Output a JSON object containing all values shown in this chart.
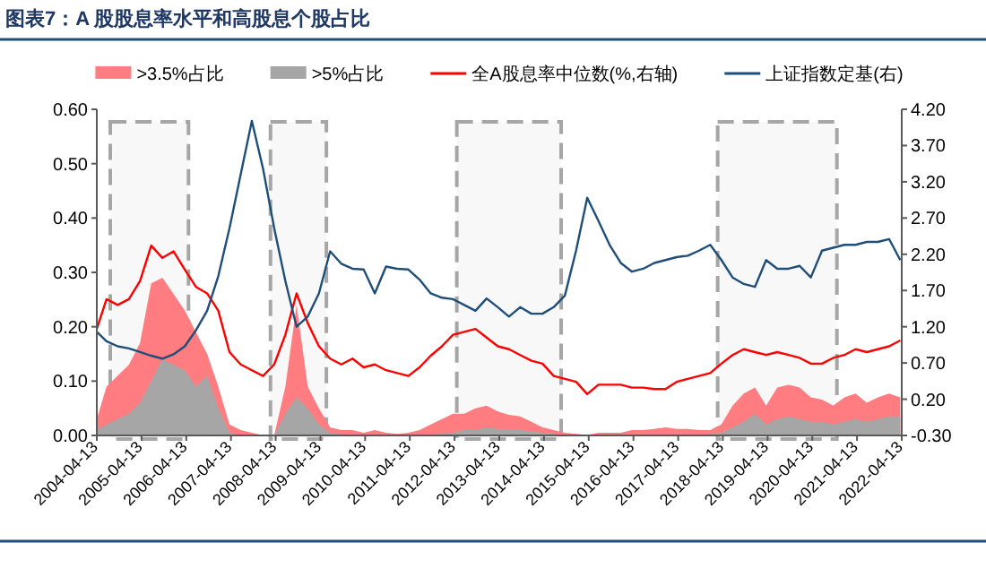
{
  "chart_data": {
    "type": "line",
    "title": "图表7：A 股股息率水平和高股息个股占比",
    "x": [
      "2004-04-13",
      "2004-07",
      "2004-10",
      "2005-01",
      "2005-04",
      "2005-07",
      "2005-10",
      "2006-01",
      "2006-04",
      "2006-07",
      "2006-10",
      "2007-01",
      "2007-04",
      "2007-07",
      "2007-10",
      "2008-01",
      "2008-04",
      "2008-07",
      "2008-10",
      "2009-01",
      "2009-04",
      "2009-07",
      "2009-10",
      "2010-01",
      "2010-04",
      "2010-07",
      "2010-10",
      "2011-01",
      "2011-04",
      "2011-07",
      "2011-10",
      "2012-01",
      "2012-04",
      "2012-07",
      "2012-10",
      "2013-01",
      "2013-04",
      "2013-07",
      "2013-10",
      "2014-01",
      "2014-04",
      "2014-07",
      "2014-10",
      "2015-01",
      "2015-04",
      "2015-07",
      "2015-10",
      "2016-01",
      "2016-04",
      "2016-07",
      "2016-10",
      "2017-01",
      "2017-04",
      "2017-07",
      "2017-10",
      "2018-01",
      "2018-04",
      "2018-07",
      "2018-10",
      "2019-01",
      "2019-04",
      "2019-07",
      "2019-10",
      "2020-01",
      "2020-04",
      "2020-07",
      "2020-10",
      "2021-01",
      "2021-04",
      "2021-07",
      "2021-10",
      "2022-01",
      "2022-04"
    ],
    "series": [
      {
        "name": ">3.5%占比",
        "type": "area",
        "color": "#ff7c80",
        "values": [
          0.03,
          0.09,
          0.11,
          0.13,
          0.17,
          0.28,
          0.29,
          0.26,
          0.23,
          0.19,
          0.15,
          0.09,
          0.02,
          0.01,
          0.005,
          0,
          0,
          0.09,
          0.24,
          0.09,
          0.05,
          0.015,
          0.01,
          0.01,
          0.005,
          0.01,
          0.005,
          0.003,
          0.005,
          0.01,
          0.02,
          0.03,
          0.04,
          0.04,
          0.05,
          0.055,
          0.044,
          0.038,
          0.035,
          0.025,
          0.015,
          0.01,
          0.005,
          0.003,
          0.001,
          0.005,
          0.005,
          0.005,
          0.01,
          0.01,
          0.012,
          0.015,
          0.012,
          0.012,
          0.01,
          0.01,
          0.02,
          0.055,
          0.077,
          0.088,
          0.055,
          0.088,
          0.093,
          0.088,
          0.07,
          0.066,
          0.055,
          0.07,
          0.077,
          0.06,
          0.07,
          0.077,
          0.07
        ]
      },
      {
        "name": ">5%占比",
        "type": "area",
        "color": "#a6a6a6",
        "values": [
          0.01,
          0.02,
          0.03,
          0.04,
          0.06,
          0.1,
          0.14,
          0.13,
          0.12,
          0.09,
          0.11,
          0.05,
          0.005,
          0,
          0,
          0,
          0,
          0.04,
          0.07,
          0.05,
          0.02,
          0.005,
          0.002,
          0.002,
          0.002,
          0.002,
          0.002,
          0.002,
          0.002,
          0.002,
          0.002,
          0.003,
          0.005,
          0.01,
          0.01,
          0.015,
          0.012,
          0.01,
          0.01,
          0.008,
          0.005,
          0.003,
          0,
          0,
          0,
          0.002,
          0.002,
          0.002,
          0.002,
          0.002,
          0.002,
          0.002,
          0.002,
          0.002,
          0.002,
          0.002,
          0.005,
          0.015,
          0.025,
          0.04,
          0.02,
          0.03,
          0.035,
          0.03,
          0.025,
          0.025,
          0.02,
          0.025,
          0.03,
          0.025,
          0.03,
          0.035,
          0.035
        ]
      },
      {
        "name": "全A股息率中位数(%,右轴)",
        "type": "line",
        "axis": "y2",
        "color": "#ff0000",
        "values": [
          1.17,
          1.58,
          1.5,
          1.58,
          1.83,
          2.32,
          2.15,
          2.24,
          1.99,
          1.75,
          1.66,
          1.42,
          0.85,
          0.68,
          0.6,
          0.52,
          0.68,
          1.09,
          1.66,
          1.25,
          0.93,
          0.76,
          0.68,
          0.76,
          0.64,
          0.68,
          0.6,
          0.56,
          0.52,
          0.64,
          0.8,
          0.93,
          1.09,
          1.13,
          1.17,
          1.05,
          0.93,
          0.89,
          0.81,
          0.73,
          0.69,
          0.52,
          0.48,
          0.44,
          0.27,
          0.4,
          0.4,
          0.4,
          0.36,
          0.36,
          0.34,
          0.34,
          0.44,
          0.48,
          0.52,
          0.56,
          0.69,
          0.81,
          0.89,
          0.85,
          0.81,
          0.85,
          0.81,
          0.77,
          0.69,
          0.69,
          0.77,
          0.81,
          0.89,
          0.85,
          0.89,
          0.93,
          1.01
        ]
      },
      {
        "name": "上证指数定基(右)",
        "type": "line",
        "axis": "y2",
        "color": "#1f4e79",
        "values": [
          1.13,
          1.0,
          0.93,
          0.9,
          0.85,
          0.8,
          0.76,
          0.82,
          0.93,
          1.15,
          1.42,
          1.9,
          2.56,
          3.3,
          4.04,
          3.38,
          2.56,
          1.83,
          1.2,
          1.34,
          1.66,
          2.24,
          2.07,
          2.0,
          1.99,
          1.66,
          2.03,
          2.0,
          1.99,
          1.85,
          1.66,
          1.6,
          1.58,
          1.5,
          1.42,
          1.59,
          1.47,
          1.34,
          1.47,
          1.38,
          1.38,
          1.47,
          1.63,
          2.25,
          2.98,
          2.66,
          2.33,
          2.08,
          1.96,
          2.0,
          2.08,
          2.12,
          2.16,
          2.18,
          2.25,
          2.33,
          2.12,
          1.88,
          1.79,
          1.75,
          2.12,
          2.0,
          2.0,
          2.04,
          1.88,
          2.25,
          2.29,
          2.33,
          2.33,
          2.37,
          2.37,
          2.41,
          2.12
        ]
      }
    ],
    "xlim": [
      "2004-04-13",
      "2022-04-13"
    ],
    "xticks": [
      "2004-04-13",
      "2005-04-13",
      "2006-04-13",
      "2007-04-13",
      "2008-04-13",
      "2009-04-13",
      "2010-04-13",
      "2011-04-13",
      "2012-04-13",
      "2013-04-13",
      "2014-04-13",
      "2015-04-13",
      "2016-04-13",
      "2017-04-13",
      "2018-04-13",
      "2019-04-13",
      "2020-04-13",
      "2021-04-13",
      "2022-04-13"
    ],
    "ylim": [
      0,
      0.6
    ],
    "yticks": [
      {
        "value": 0,
        "label": "0.00"
      },
      {
        "value": 0.1,
        "label": "0.10"
      },
      {
        "value": 0.2,
        "label": "0.20"
      },
      {
        "value": 0.3,
        "label": "0.30"
      },
      {
        "value": 0.4,
        "label": "0.40"
      },
      {
        "value": 0.5,
        "label": "0.50"
      },
      {
        "value": 0.6,
        "label": "0.60"
      }
    ],
    "y2lim": [
      -0.3,
      4.2
    ],
    "y2ticks": [
      {
        "value": -0.3,
        "label": "-0.30"
      },
      {
        "value": 0.2,
        "label": "0.20"
      },
      {
        "value": 0.7,
        "label": "0.70"
      },
      {
        "value": 1.2,
        "label": "1.20"
      },
      {
        "value": 1.7,
        "label": "1.70"
      },
      {
        "value": 2.2,
        "label": "2.20"
      },
      {
        "value": 2.7,
        "label": "2.70"
      },
      {
        "value": 3.2,
        "label": "3.20"
      },
      {
        "value": 3.7,
        "label": "3.70"
      },
      {
        "value": 4.2,
        "label": "4.20"
      }
    ],
    "bands": [
      {
        "axis": "x",
        "from": "2004-08",
        "to": "2006-05",
        "color": "#a6a6a6"
      },
      {
        "axis": "x",
        "from": "2008-03",
        "to": "2009-06",
        "color": "#a6a6a6"
      },
      {
        "axis": "x",
        "from": "2012-05",
        "to": "2014-09",
        "color": "#a6a6a6"
      },
      {
        "axis": "x",
        "from": "2018-03",
        "to": "2020-11",
        "color": "#a6a6a6"
      }
    ],
    "legend": "top",
    "grid": false
  }
}
